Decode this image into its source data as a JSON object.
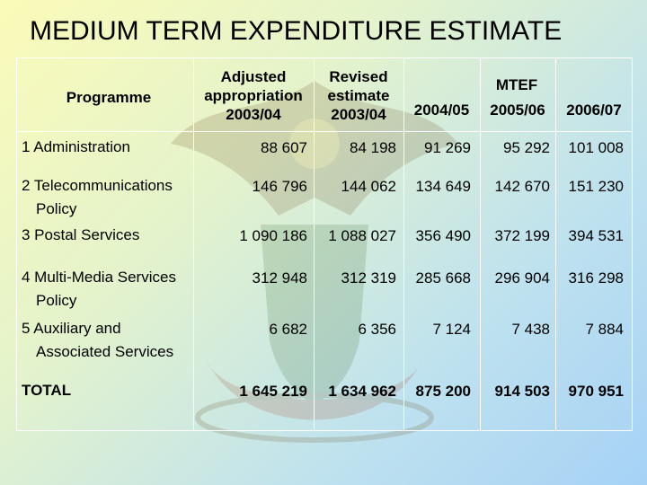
{
  "title": "MEDIUM TERM EXPENDITURE ESTIMATE",
  "headers": {
    "programme": "Programme",
    "adjusted": [
      "Adjusted",
      "appropriation",
      "2003/04"
    ],
    "revised": [
      "Revised",
      "estimate",
      "2003/04"
    ],
    "mtef": "MTEF",
    "y1": "2004/05",
    "y2": "2005/06",
    "y3": "2006/07"
  },
  "rows": [
    {
      "programme": [
        "1 Administration"
      ],
      "values": [
        "88 607",
        "84 198",
        "91 269",
        "95 292",
        "101 008"
      ]
    },
    {
      "programme": [
        "2 Telecommunications",
        "Policy"
      ],
      "values": [
        "146 796",
        "144 062",
        "134 649",
        "142 670",
        "151 230"
      ]
    },
    {
      "programme": [
        "3 Postal Services"
      ],
      "values": [
        "1 090 186",
        "1 088  027",
        "356 490",
        "372 199",
        "394 531"
      ]
    },
    {
      "programme": [
        "4 Multi-Media Services",
        "Policy"
      ],
      "values": [
        "312 948",
        "312 319",
        "285 668",
        "296 904",
        "316 298"
      ]
    },
    {
      "programme": [
        "5 Auxiliary and",
        "Associated Services"
      ],
      "values": [
        "6 682",
        "6 356",
        "7 124",
        "7 438",
        "7 884"
      ]
    },
    {
      "programme": [
        "TOTAL"
      ],
      "values": [
        "1 645 219",
        "1 634 962",
        "875 200",
        "914 503",
        "970 951"
      ]
    }
  ]
}
